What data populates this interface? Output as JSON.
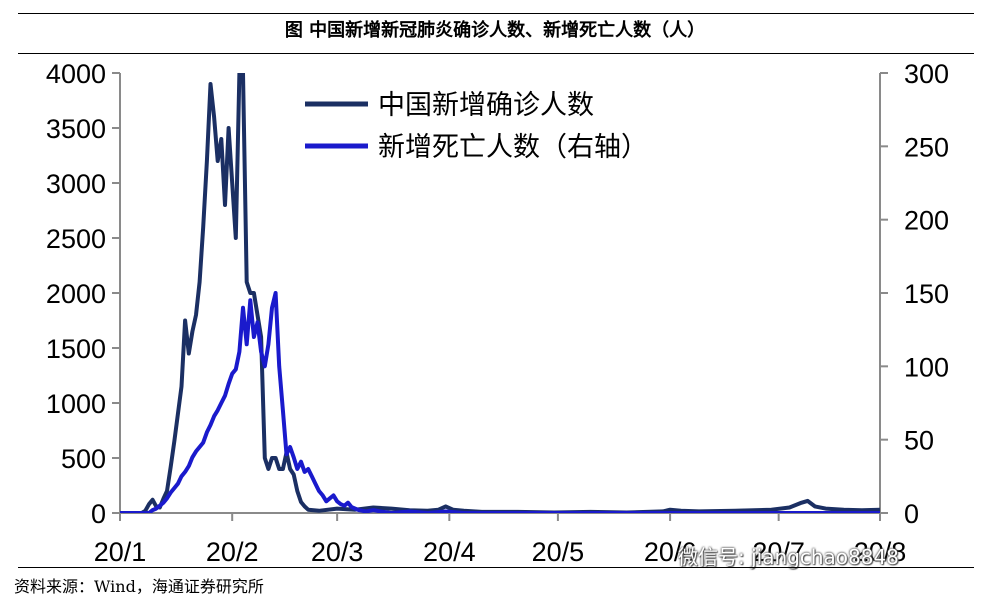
{
  "title": "图  中国新增新冠肺炎确诊人数、新增死亡人数（人）",
  "footer": "资料来源：Wind，海通证券研究所",
  "watermark": "微信号: jiangchao8848",
  "chart_data": {
    "type": "line",
    "title": "图  中国新增新冠肺炎确诊人数、新增死亡人数（人）",
    "x_tick_labels": [
      "20/1",
      "20/2",
      "20/3",
      "20/4",
      "20/5",
      "20/6",
      "20/7",
      "20/8"
    ],
    "x_domain_days": [
      0,
      210
    ],
    "ylim_left": [
      0,
      4000
    ],
    "ylim_right": [
      0,
      300
    ],
    "yticks_left": [
      0,
      500,
      1000,
      1500,
      2000,
      2500,
      3000,
      3500,
      4000
    ],
    "yticks_right": [
      0,
      50,
      100,
      150,
      200,
      250,
      300
    ],
    "legend_placement": "top-center",
    "grid": false,
    "series": [
      {
        "name": "中国新增确诊人数",
        "axis": "left",
        "color": "#1b2f63",
        "points": [
          [
            0,
            0
          ],
          [
            6,
            0
          ],
          [
            7,
            20
          ],
          [
            8,
            80
          ],
          [
            9,
            120
          ],
          [
            10,
            60
          ],
          [
            11,
            50
          ],
          [
            12,
            130
          ],
          [
            13,
            200
          ],
          [
            14,
            420
          ],
          [
            15,
            650
          ],
          [
            16,
            900
          ],
          [
            17,
            1150
          ],
          [
            18,
            1750
          ],
          [
            19,
            1450
          ],
          [
            20,
            1650
          ],
          [
            21,
            1800
          ],
          [
            22,
            2100
          ],
          [
            23,
            2600
          ],
          [
            24,
            3200
          ],
          [
            25,
            3900
          ],
          [
            26,
            3600
          ],
          [
            27,
            3200
          ],
          [
            28,
            3400
          ],
          [
            29,
            2800
          ],
          [
            30,
            3500
          ],
          [
            31,
            3000
          ],
          [
            32,
            2500
          ],
          [
            33,
            4000
          ],
          [
            34,
            4000
          ],
          [
            35,
            2100
          ],
          [
            36,
            2000
          ],
          [
            37,
            2000
          ],
          [
            38,
            1800
          ],
          [
            39,
            1600
          ],
          [
            40,
            500
          ],
          [
            41,
            400
          ],
          [
            42,
            500
          ],
          [
            43,
            500
          ],
          [
            44,
            400
          ],
          [
            45,
            400
          ],
          [
            46,
            550
          ],
          [
            47,
            400
          ],
          [
            48,
            350
          ],
          [
            49,
            200
          ],
          [
            50,
            100
          ],
          [
            51,
            60
          ],
          [
            52,
            30
          ],
          [
            55,
            20
          ],
          [
            60,
            40
          ],
          [
            65,
            30
          ],
          [
            70,
            50
          ],
          [
            75,
            40
          ],
          [
            80,
            25
          ],
          [
            85,
            20
          ],
          [
            88,
            30
          ],
          [
            90,
            60
          ],
          [
            92,
            30
          ],
          [
            95,
            20
          ],
          [
            100,
            10
          ],
          [
            110,
            10
          ],
          [
            120,
            5
          ],
          [
            130,
            10
          ],
          [
            140,
            5
          ],
          [
            150,
            15
          ],
          [
            152,
            30
          ],
          [
            155,
            20
          ],
          [
            160,
            15
          ],
          [
            170,
            20
          ],
          [
            180,
            30
          ],
          [
            185,
            50
          ],
          [
            188,
            90
          ],
          [
            190,
            110
          ],
          [
            192,
            60
          ],
          [
            195,
            40
          ],
          [
            200,
            30
          ],
          [
            205,
            25
          ],
          [
            210,
            30
          ]
        ]
      },
      {
        "name": "新增死亡人数（右轴）",
        "axis": "right",
        "color": "#1a1acc",
        "points": [
          [
            0,
            0
          ],
          [
            8,
            0
          ],
          [
            9,
            2
          ],
          [
            10,
            3
          ],
          [
            11,
            5
          ],
          [
            12,
            7
          ],
          [
            13,
            10
          ],
          [
            14,
            14
          ],
          [
            15,
            17
          ],
          [
            16,
            20
          ],
          [
            17,
            25
          ],
          [
            18,
            28
          ],
          [
            19,
            32
          ],
          [
            20,
            38
          ],
          [
            21,
            42
          ],
          [
            22,
            45
          ],
          [
            23,
            48
          ],
          [
            24,
            55
          ],
          [
            25,
            60
          ],
          [
            26,
            66
          ],
          [
            27,
            70
          ],
          [
            28,
            75
          ],
          [
            29,
            80
          ],
          [
            30,
            88
          ],
          [
            31,
            95
          ],
          [
            32,
            98
          ],
          [
            33,
            110
          ],
          [
            34,
            140
          ],
          [
            35,
            115
          ],
          [
            36,
            145
          ],
          [
            37,
            120
          ],
          [
            38,
            130
          ],
          [
            39,
            110
          ],
          [
            40,
            100
          ],
          [
            41,
            115
          ],
          [
            42,
            140
          ],
          [
            43,
            150
          ],
          [
            44,
            100
          ],
          [
            45,
            70
          ],
          [
            46,
            40
          ],
          [
            47,
            45
          ],
          [
            48,
            38
          ],
          [
            49,
            30
          ],
          [
            50,
            35
          ],
          [
            51,
            28
          ],
          [
            52,
            30
          ],
          [
            53,
            25
          ],
          [
            54,
            20
          ],
          [
            55,
            15
          ],
          [
            56,
            12
          ],
          [
            57,
            8
          ],
          [
            58,
            10
          ],
          [
            59,
            12
          ],
          [
            60,
            8
          ],
          [
            61,
            6
          ],
          [
            62,
            5
          ],
          [
            63,
            7
          ],
          [
            64,
            4
          ],
          [
            65,
            3
          ],
          [
            66,
            2
          ],
          [
            68,
            1
          ],
          [
            70,
            2
          ],
          [
            72,
            1
          ],
          [
            75,
            0
          ],
          [
            80,
            1
          ],
          [
            85,
            0
          ],
          [
            90,
            1
          ],
          [
            95,
            0
          ],
          [
            100,
            0
          ],
          [
            110,
            0
          ],
          [
            120,
            0
          ],
          [
            130,
            0
          ],
          [
            140,
            0
          ],
          [
            150,
            0
          ],
          [
            160,
            0
          ],
          [
            170,
            0
          ],
          [
            180,
            0
          ],
          [
            190,
            0
          ],
          [
            200,
            0
          ],
          [
            210,
            0
          ]
        ]
      }
    ]
  }
}
